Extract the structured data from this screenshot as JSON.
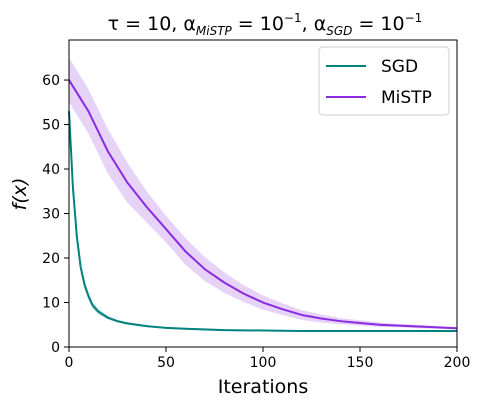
{
  "chart_data": {
    "type": "line",
    "title_parts": [
      "τ = 10, α",
      "MiSTP",
      " = 10",
      "−1",
      ", α",
      "SGD",
      " = 10",
      "−1"
    ],
    "xlabel": "Iterations",
    "ylabel": "f(x)",
    "xlim": [
      0,
      200
    ],
    "ylim": [
      0,
      69
    ],
    "xticks": [
      0,
      50,
      100,
      150,
      200
    ],
    "yticks": [
      0,
      10,
      20,
      30,
      40,
      50,
      60
    ],
    "grid": false,
    "legend_position": "top-right",
    "series": [
      {
        "name": "SGD",
        "color": "#00827f",
        "x": [
          0,
          2,
          4,
          6,
          8,
          10,
          12,
          15,
          20,
          25,
          30,
          40,
          50,
          60,
          80,
          100,
          120,
          150,
          200
        ],
        "y": [
          53,
          36,
          25,
          18,
          14,
          11.5,
          9.5,
          8.0,
          6.6,
          5.8,
          5.3,
          4.7,
          4.3,
          4.1,
          3.8,
          3.7,
          3.6,
          3.6,
          3.6
        ],
        "upper": [
          55.5,
          38,
          26.5,
          19.2,
          15,
          12.3,
          10.2,
          8.6,
          7.0,
          6.1,
          5.6,
          4.9,
          4.5,
          4.3,
          4.0,
          3.85,
          3.75,
          3.75,
          3.7
        ],
        "lower": [
          50.5,
          34,
          23.5,
          16.8,
          13,
          10.7,
          8.8,
          7.4,
          6.2,
          5.5,
          5.0,
          4.5,
          4.1,
          3.9,
          3.6,
          3.55,
          3.45,
          3.45,
          3.5
        ]
      },
      {
        "name": "MiSTP",
        "color": "#8a2be2",
        "band_color": "#d6b6f2",
        "x": [
          0,
          10,
          20,
          30,
          40,
          50,
          60,
          70,
          80,
          90,
          100,
          110,
          120,
          130,
          140,
          150,
          160,
          170,
          180,
          190,
          200
        ],
        "y": [
          60,
          53,
          44,
          37,
          31.5,
          26.5,
          21.5,
          17.5,
          14.5,
          12,
          10,
          8.5,
          7.2,
          6.4,
          5.8,
          5.4,
          5.0,
          4.8,
          4.6,
          4.4,
          4.2
        ],
        "upper": [
          65,
          58,
          49,
          41.5,
          35,
          29.5,
          24.5,
          20.2,
          16.8,
          13.9,
          11.6,
          9.8,
          8.3,
          7.3,
          6.5,
          6.0,
          5.5,
          5.2,
          5.0,
          4.7,
          4.5
        ],
        "lower": [
          55,
          48,
          39,
          32.5,
          28,
          23.5,
          18.5,
          14.8,
          12.2,
          10.1,
          8.4,
          7.2,
          6.1,
          5.5,
          5.1,
          4.8,
          4.5,
          4.4,
          4.2,
          4.1,
          3.9
        ]
      }
    ]
  }
}
